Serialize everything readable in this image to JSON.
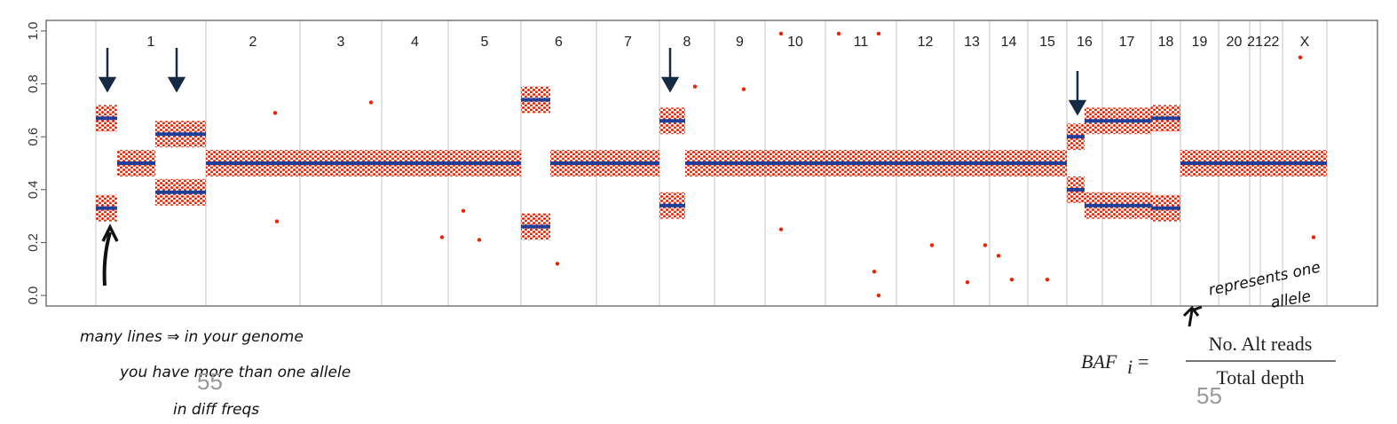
{
  "chart_data": {
    "type": "baf",
    "xlim": [
      0,
      1500
    ],
    "ylim": [
      -0.04,
      1.04
    ],
    "yticks": [
      {
        "value": 0,
        "label": "0.0"
      },
      0.2,
      0.4,
      0.6,
      0.8,
      {
        "value": 1,
        "label": "1.0"
      }
    ],
    "categories": [
      "1",
      "2",
      "3",
      "4",
      "5",
      "6",
      "7",
      "8",
      "9",
      "10",
      "11",
      "12",
      "13",
      "14",
      "15",
      "16",
      "17",
      "18",
      "19",
      "20",
      "21",
      "22",
      "X"
    ],
    "boundaries": [
      56,
      180,
      286,
      378,
      453,
      535,
      620,
      691,
      753,
      810,
      878,
      958,
      1023,
      1063,
      1106,
      1150,
      1190,
      1245,
      1278,
      1321,
      1356,
      1368,
      1393,
      1443
    ],
    "point_color": "#ee2200",
    "segment_color": "#1f3f9a",
    "point_spread": 0.05,
    "segments": [
      {
        "start": 56,
        "end": 80,
        "value": 0.67
      },
      {
        "start": 56,
        "end": 80,
        "value": 0.33
      },
      {
        "start": 80,
        "end": 123,
        "value": 0.5
      },
      {
        "start": 123,
        "end": 180,
        "value": 0.61
      },
      {
        "start": 123,
        "end": 180,
        "value": 0.39
      },
      {
        "start": 180,
        "end": 535,
        "value": 0.5
      },
      {
        "start": 535,
        "end": 568,
        "value": 0.74
      },
      {
        "start": 535,
        "end": 568,
        "value": 0.26
      },
      {
        "start": 568,
        "end": 691,
        "value": 0.5
      },
      {
        "start": 691,
        "end": 720,
        "value": 0.66
      },
      {
        "start": 691,
        "end": 720,
        "value": 0.34
      },
      {
        "start": 720,
        "end": 1150,
        "value": 0.5
      },
      {
        "start": 1150,
        "end": 1170,
        "value": 0.6
      },
      {
        "start": 1150,
        "end": 1170,
        "value": 0.4
      },
      {
        "start": 1170,
        "end": 1245,
        "value": 0.66
      },
      {
        "start": 1170,
        "end": 1245,
        "value": 0.34
      },
      {
        "start": 1245,
        "end": 1278,
        "value": 0.67
      },
      {
        "start": 1245,
        "end": 1278,
        "value": 0.33
      },
      {
        "start": 1278,
        "end": 1443,
        "value": 0.5
      }
    ],
    "outliers": {
      "x": [
        828,
        893,
        938,
        933,
        938,
        828,
        998,
        1038,
        1088,
        1128,
        1058,
        1073,
        1413,
        1428,
        258,
        260,
        366,
        446,
        470,
        488,
        576,
        731,
        786
      ],
      "y": [
        0.99,
        0.99,
        0.99,
        0.09,
        0.0,
        0.25,
        0.19,
        0.05,
        0.06,
        0.06,
        0.19,
        0.15,
        0.9,
        0.22,
        0.69,
        0.28,
        0.73,
        0.22,
        0.32,
        0.21,
        0.12,
        0.79,
        0.78
      ]
    }
  },
  "annotations": {
    "note_line1": "many lines ⇒ in your genome",
    "note_line2": "you have more than one allele",
    "note_line3": "in diff freqs",
    "allele_note_line1": "represents one",
    "allele_note_line2": "allele"
  },
  "formula": {
    "lhs": "BAF",
    "subscript": "i",
    "equals": "=",
    "numerator": "No. Alt reads",
    "denominator": "Total depth"
  },
  "page_number": "55"
}
